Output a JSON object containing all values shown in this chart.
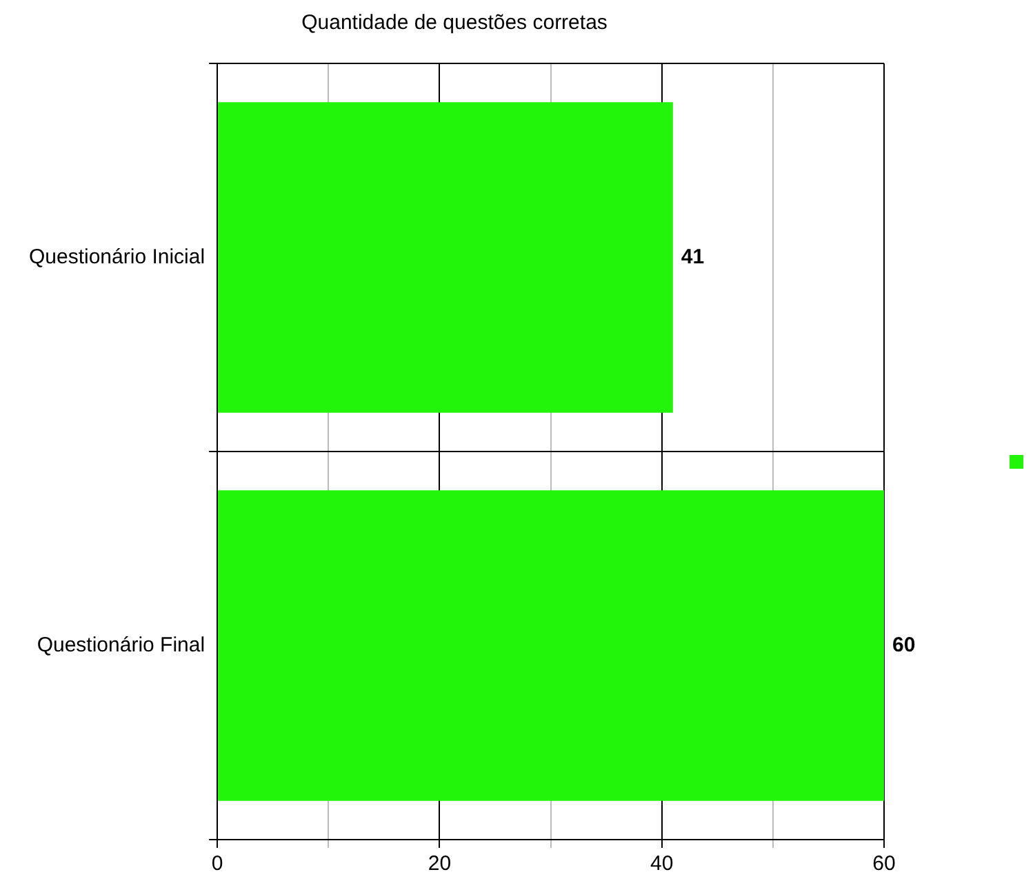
{
  "chart_data": {
    "type": "bar",
    "orientation": "horizontal",
    "title": "Quantidade de questões corretas",
    "categories": [
      "Questionário Inicial",
      "Questionário Final"
    ],
    "values": [
      41,
      60
    ],
    "color": "#22f50a",
    "xlim": [
      0,
      60
    ],
    "xticks": [
      0,
      {
        "value": 10,
        "label": null
      },
      20,
      {
        "value": 30,
        "label": null
      },
      40,
      {
        "value": 50,
        "label": null
      },
      60
    ],
    "grid": true,
    "data_labels": true
  }
}
